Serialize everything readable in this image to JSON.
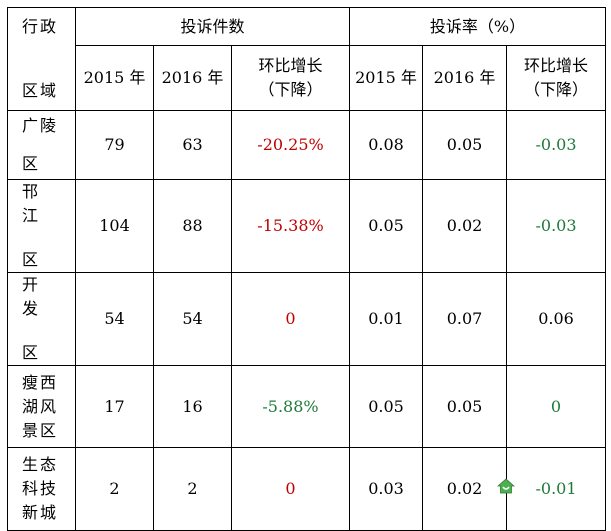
{
  "headers": {
    "region": [
      "行政",
      "区域"
    ],
    "complaints_group": "投诉件数",
    "rate_group": "投诉率（%）",
    "y2015": "2015 年",
    "y2016": "2016 年",
    "change": [
      "环比增长",
      "（下降）"
    ]
  },
  "rows": [
    {
      "region": [
        "广陵",
        "区"
      ],
      "c2015": "79",
      "c2016": "63",
      "c_change": "-20.25%",
      "r2015": "0.08",
      "r2016": "0.05",
      "r_change": "-0.03"
    },
    {
      "region": [
        "邗　江",
        "区"
      ],
      "c2015": "104",
      "c2016": "88",
      "c_change": "-15.38%",
      "r2015": "0.05",
      "r2016": "0.02",
      "r_change": "-0.03"
    },
    {
      "region": [
        "开　发",
        "区"
      ],
      "c2015": "54",
      "c2016": "54",
      "c_change": "0",
      "r2015": "0.01",
      "r2016": "0.07",
      "r_change": "0.06"
    },
    {
      "region": [
        "瘦西",
        "湖风",
        "景区"
      ],
      "c2015": "17",
      "c2016": "16",
      "c_change": "-5.88%",
      "r2015": "0.05",
      "r2016": "0.05",
      "r_change": "0"
    },
    {
      "region": [
        "生态",
        "科技",
        "新城"
      ],
      "c2015": "2",
      "c2016": "2",
      "c_change": "0",
      "r2015": "0.03",
      "r2016": "0.02",
      "r_change": "-0.01"
    }
  ],
  "colors": {
    "decline": "#c00000",
    "neutral_green": "#1f7a3a"
  },
  "icons": {
    "watermark": "house-logo-icon"
  }
}
